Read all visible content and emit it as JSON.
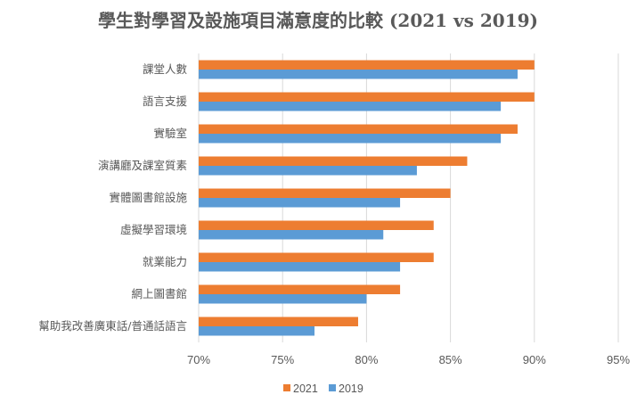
{
  "chart_data": {
    "type": "bar",
    "orientation": "horizontal",
    "title": "學生對學習及設施項目滿意度的比較 (2021 vs 2019)",
    "xlabel": "",
    "ylabel": "",
    "xlim": [
      70,
      95
    ],
    "xticks": [
      70,
      75,
      80,
      85,
      90,
      95
    ],
    "xtick_labels": [
      "70%",
      "75%",
      "80%",
      "85%",
      "90%",
      "95%"
    ],
    "grid": "vertical",
    "legend_position": "bottom",
    "categories": [
      "課堂人數",
      "語言支援",
      "實驗室",
      "演講廳及課室質素",
      "實體圖書館設施",
      "虛擬學習環境",
      "就業能力",
      "網上圖書館",
      "幫助我改善廣東話/普通話語言"
    ],
    "series": [
      {
        "name": "2021",
        "color": "#ED7D31",
        "values": [
          90,
          90,
          89,
          86,
          85,
          84,
          84,
          82,
          79.5
        ]
      },
      {
        "name": "2019",
        "color": "#5B9BD5",
        "values": [
          89,
          88,
          88,
          83,
          82,
          81,
          82,
          80,
          76.9
        ]
      }
    ]
  }
}
